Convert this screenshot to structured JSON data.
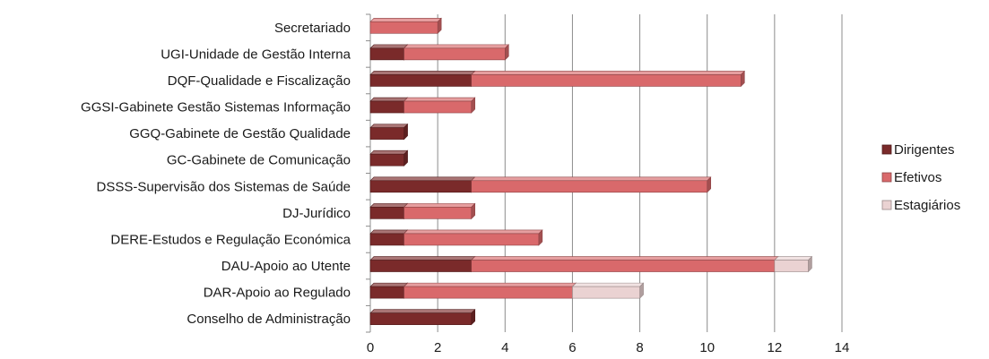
{
  "chart_data": {
    "type": "bar",
    "orientation": "horizontal",
    "stacked": true,
    "categories": [
      "Secretariado",
      "UGI-Unidade de Gestão Interna",
      "DQF-Qualidade e Fiscalização",
      "GGSI-Gabinete Gestão Sistemas Informação",
      "GGQ-Gabinete de Gestão  Qualidade",
      "GC-Gabinete de Comunicação",
      "DSSS-Supervisão dos Sistemas de Saúde",
      "DJ-Jurídico",
      "DERE-Estudos e Regulação Económica",
      "DAU-Apoio ao Utente",
      "DAR-Apoio ao Regulado",
      "Conselho de Administração"
    ],
    "series": [
      {
        "name": "Dirigentes",
        "color": "#7a2a2a",
        "values": [
          0,
          1,
          3,
          1,
          1,
          1,
          3,
          1,
          1,
          3,
          1,
          3
        ]
      },
      {
        "name": "Efetivos",
        "color": "#d9696b",
        "values": [
          2,
          3,
          8,
          2,
          0,
          0,
          7,
          2,
          4,
          9,
          5,
          0
        ]
      },
      {
        "name": "Estagiários",
        "color": "#ead2d2",
        "values": [
          0,
          0,
          0,
          0,
          0,
          0,
          0,
          0,
          0,
          1,
          2,
          0
        ]
      }
    ],
    "xlim": [
      0,
      14
    ],
    "xticks": [
      "0",
      "2",
      "4",
      "6",
      "8",
      "10",
      "12",
      "14"
    ],
    "grid": "vertical",
    "legend_position": "right"
  }
}
